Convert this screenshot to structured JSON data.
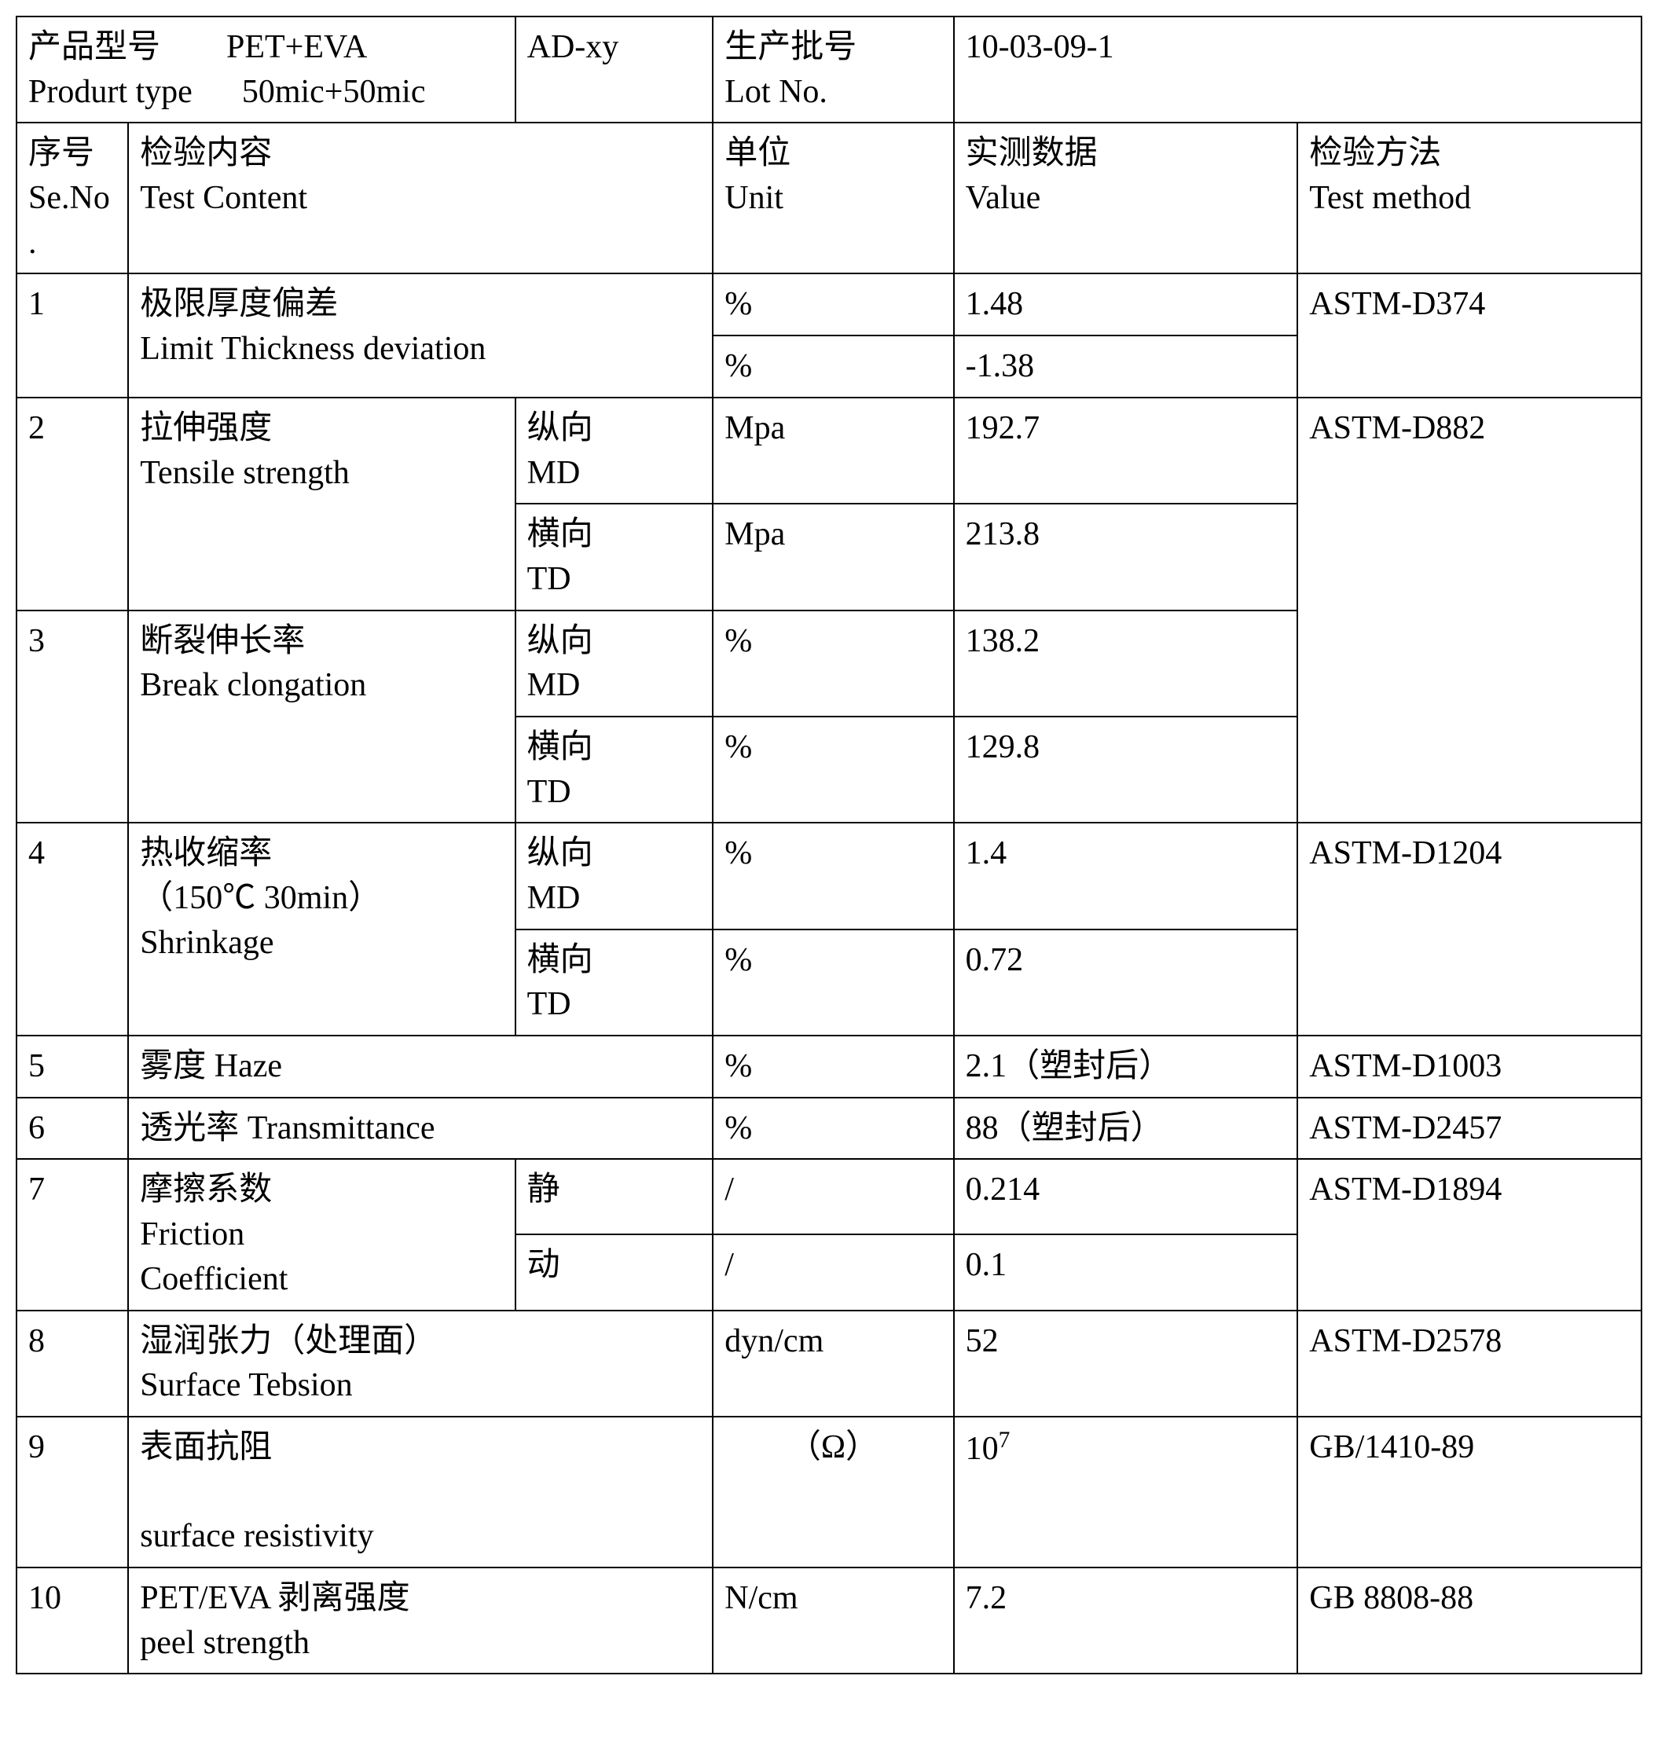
{
  "colors": {
    "border": "#000000",
    "background": "#ffffff",
    "text": "#000000"
  },
  "font_size_pt": 32,
  "header": {
    "product_type_label_cn": "产品型号",
    "product_type_label_en": "Produrt type",
    "product_type_value_l1": "PET+EVA",
    "product_type_value_l2": "50mic+50mic",
    "ad": "AD-xy",
    "lot_label_cn": "生产批号",
    "lot_label_en": "Lot No.",
    "lot_value": "10-03-09-1"
  },
  "columns": {
    "seno_cn": "序号",
    "seno_en": "Se.No.",
    "test_cn": "检验内容",
    "test_en": "Test Content",
    "unit_cn": "单位",
    "unit_en": "Unit",
    "value_cn": "实测数据",
    "value_en": "Value",
    "method_cn": "检验方法",
    "method_en": "Test method"
  },
  "dir": {
    "md_cn": "纵向",
    "md_en": "MD",
    "td_cn": "横向",
    "td_en": "TD",
    "static": "静",
    "dynamic": "动"
  },
  "rows": {
    "r1": {
      "no": "1",
      "name_cn": "极限厚度偏差",
      "name_en": "Limit Thickness deviation",
      "unit": "%",
      "v1": "1.48",
      "v2": "-1.38",
      "method": "ASTM-D374"
    },
    "r2": {
      "no": "2",
      "name_cn": "拉伸强度",
      "name_en": "Tensile strength",
      "unit": "Mpa",
      "v_md": "192.7",
      "v_td": "213.8",
      "method": "ASTM-D882"
    },
    "r3": {
      "no": "3",
      "name_cn": "断裂伸长率",
      "name_en": "Break clongation",
      "unit": "%",
      "v_md": "138.2",
      "v_td": "129.8"
    },
    "r4": {
      "no": "4",
      "name_cn": "热收缩率",
      "name_cn2": "（150℃ 30min）",
      "name_en": " Shrinkage",
      "unit": "%",
      "v_md": "1.4",
      "v_td": "0.72",
      "method": "ASTM-D1204"
    },
    "r5": {
      "no": "5",
      "name": "雾度    Haze",
      "unit": "%",
      "value": "2.1（塑封后）",
      "method": "ASTM-D1003"
    },
    "r6": {
      "no": "6",
      "name": "透光率    Transmittance",
      "unit": "%",
      "value": "88（塑封后）",
      "method": "ASTM-D2457"
    },
    "r7": {
      "no": "7",
      "name_cn": "摩擦系数",
      "name_cn2": "  Friction",
      "name_en": "Coefficient",
      "unit": "/",
      "v_static": "0.214",
      "v_dynamic": "0.1",
      "method": "ASTM-D1894"
    },
    "r8": {
      "no": "8",
      "name_cn": "湿润张力（处理面）",
      "name_en": "Surface Tebsion",
      "unit": "dyn/cm",
      "value": "52",
      "method": "ASTM-D2578"
    },
    "r9": {
      "no": "9",
      "name_cn": "表面抗阻",
      "name_en": "surface resistivity",
      "unit": "（Ω）",
      "value_html": "10<sup>7</sup>",
      "method": "GB/1410-89"
    },
    "r10": {
      "no": "10",
      "name_cn": "PET/EVA 剥离强度",
      "name_en": "peel strength",
      "unit": "N/cm",
      "value": "7.2",
      "method": "GB 8808-88"
    }
  }
}
